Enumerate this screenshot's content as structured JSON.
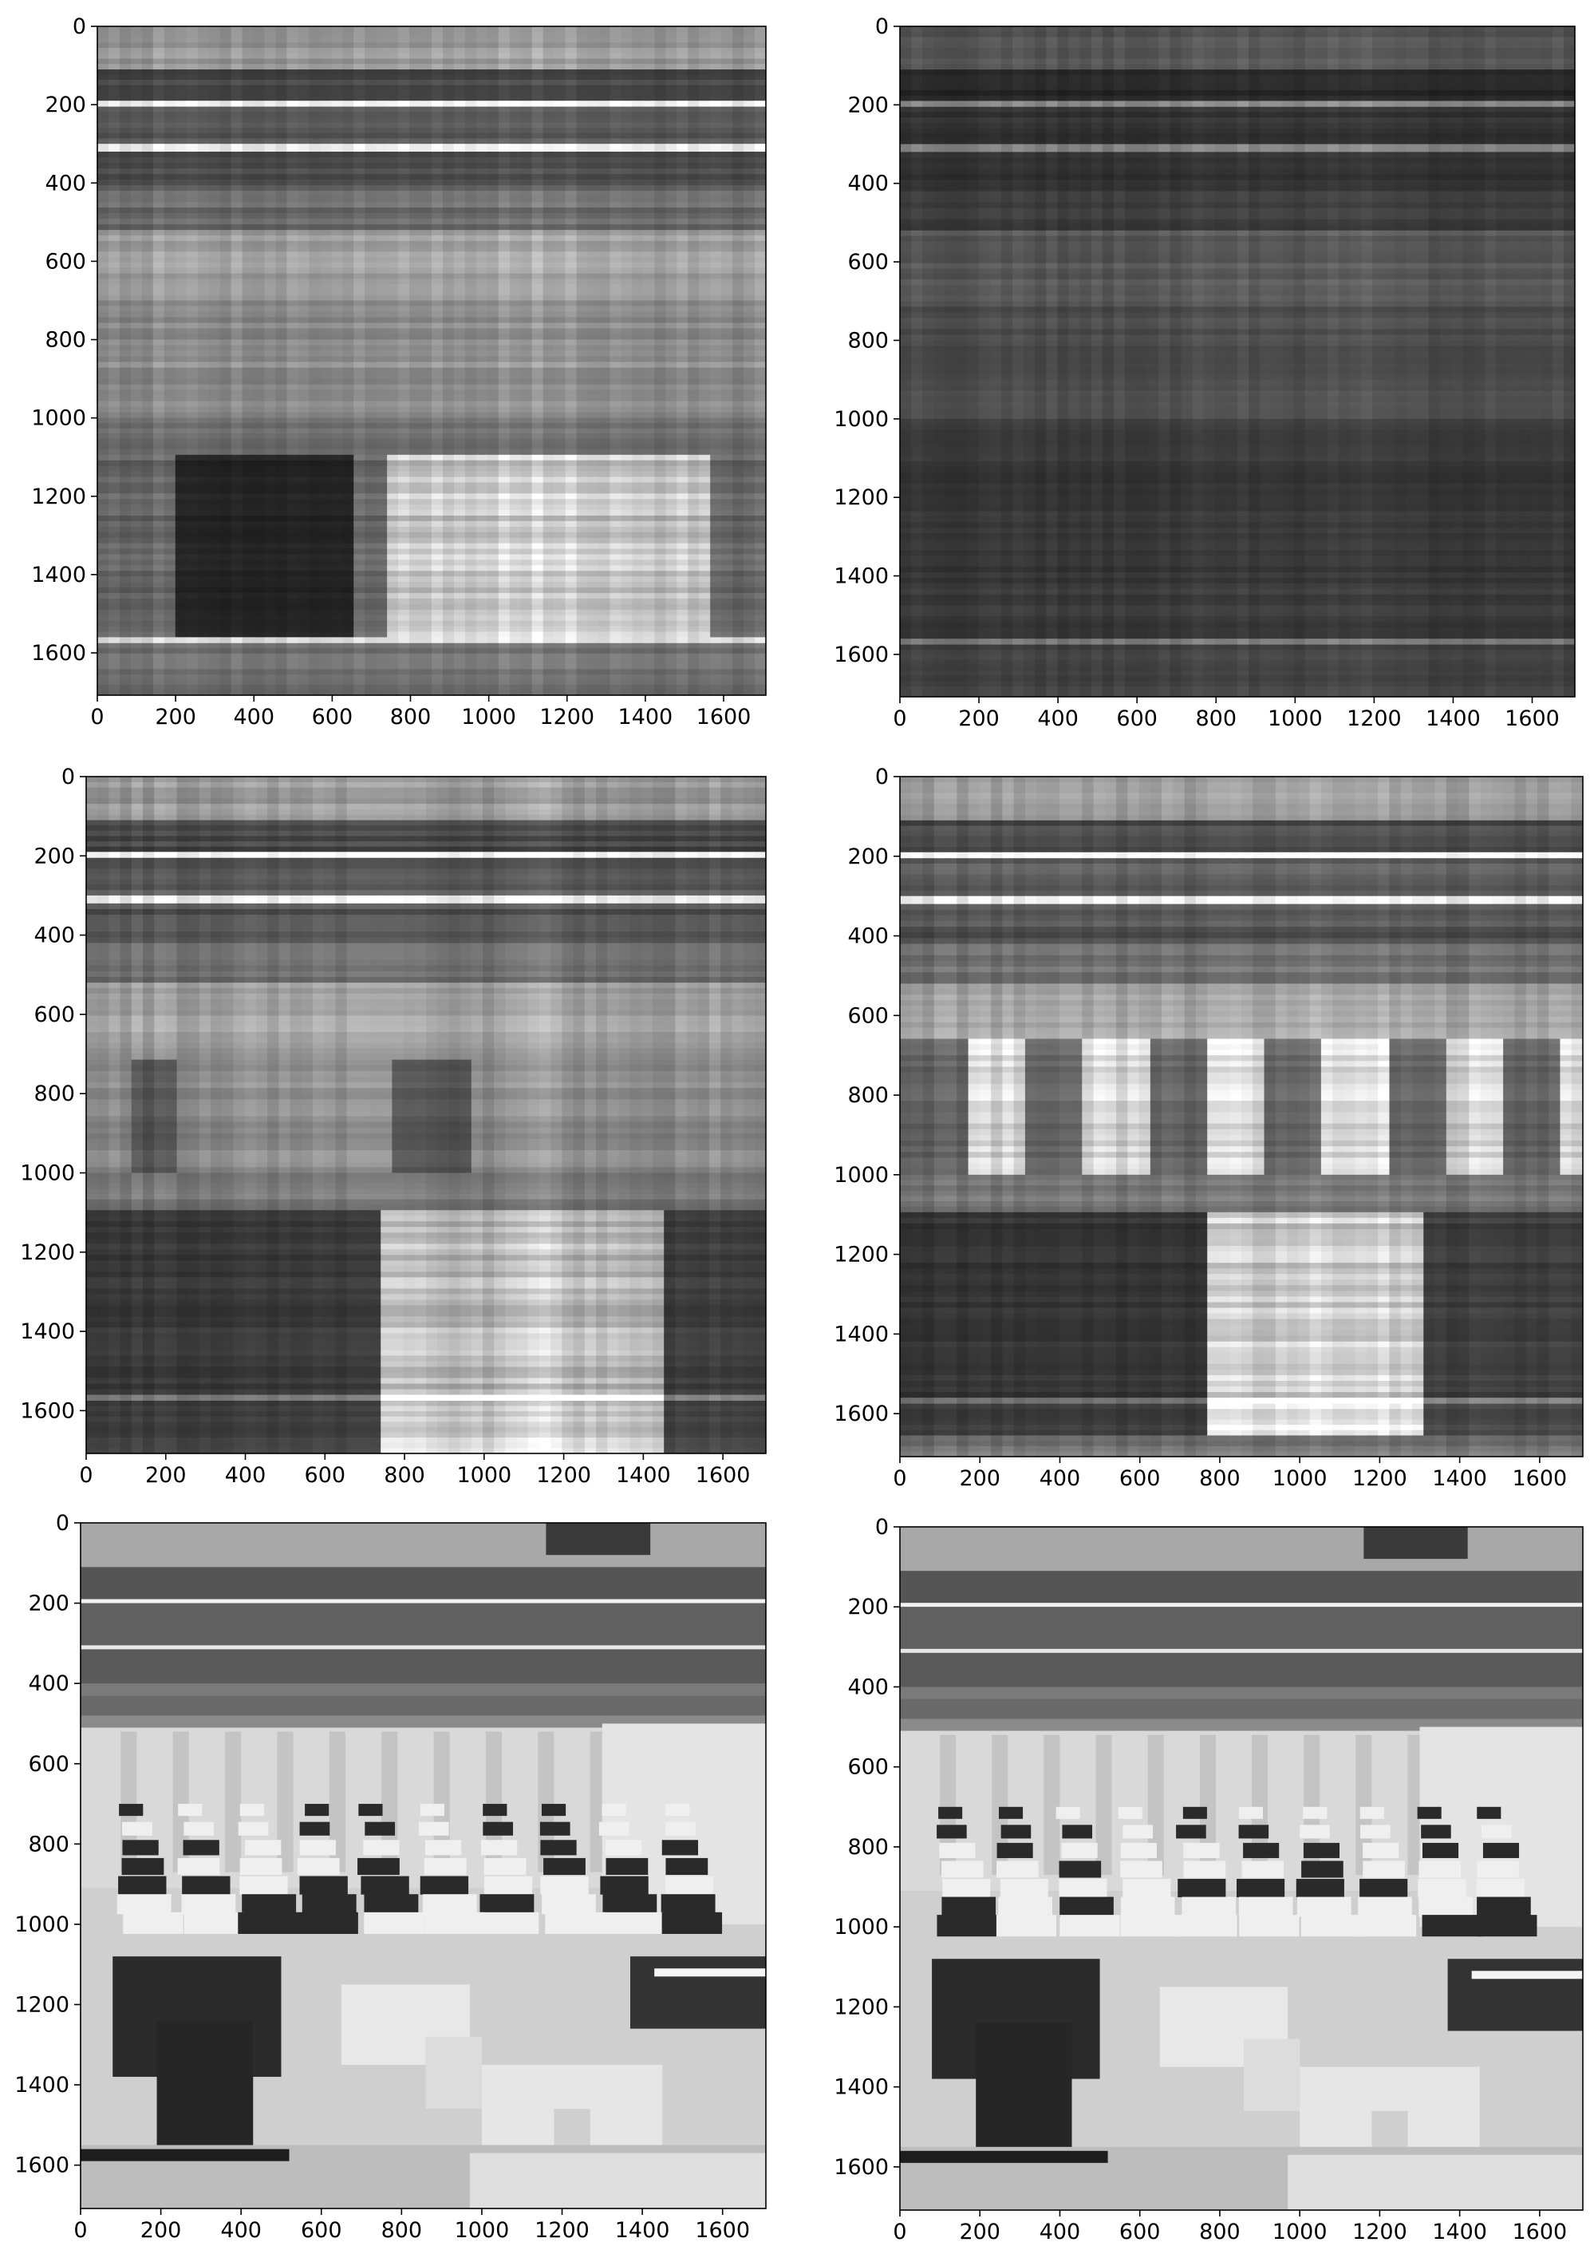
{
  "chart_data": [
    {
      "type": "heatmap",
      "description_key": "image-panel-1",
      "content": "rank-1 SVD reconstruction style grayscale image",
      "x_ticks": [
        0,
        200,
        400,
        600,
        800,
        1000,
        1200,
        1400,
        1600
      ],
      "y_ticks": [
        0,
        200,
        400,
        600,
        800,
        1000,
        1200,
        1400,
        1600
      ],
      "xlim": [
        0,
        1708
      ],
      "ylim": [
        1708,
        0
      ],
      "colormap": "gray"
    },
    {
      "type": "heatmap",
      "content": "low-rank reconstruction, mostly dark horizontal banding",
      "x_ticks": [
        0,
        200,
        400,
        600,
        800,
        1000,
        1200,
        1400,
        1600
      ],
      "y_ticks": [
        0,
        200,
        400,
        600,
        800,
        1000,
        1200,
        1400,
        1600
      ],
      "xlim": [
        0,
        1708
      ],
      "ylim": [
        1708,
        0
      ],
      "colormap": "gray"
    },
    {
      "type": "heatmap",
      "content": "low-rank reconstruction with emerging blocks",
      "x_ticks": [
        0,
        200,
        400,
        600,
        800,
        1000,
        1200,
        1400,
        1600
      ],
      "y_ticks": [
        0,
        200,
        400,
        600,
        800,
        1000,
        1200,
        1400,
        1600
      ],
      "xlim": [
        0,
        1708
      ],
      "ylim": [
        1708,
        0
      ],
      "colormap": "gray"
    },
    {
      "type": "heatmap",
      "content": "medium-rank reconstruction",
      "x_ticks": [
        0,
        200,
        400,
        600,
        800,
        1000,
        1200,
        1400,
        1600
      ],
      "y_ticks": [
        0,
        200,
        400,
        600,
        800,
        1000,
        1200,
        1400,
        1600
      ],
      "xlim": [
        0,
        1708
      ],
      "ylim": [
        1708,
        0
      ],
      "colormap": "gray"
    },
    {
      "type": "heatmap",
      "content": "high-rank reconstruction of office photo",
      "x_ticks": [
        0,
        200,
        400,
        600,
        800,
        1000,
        1200,
        1400,
        1600
      ],
      "y_ticks": [
        0,
        200,
        400,
        600,
        800,
        1000,
        1200,
        1400,
        1600
      ],
      "xlim": [
        0,
        1708
      ],
      "ylim": [
        1708,
        0
      ],
      "colormap": "gray"
    },
    {
      "type": "heatmap",
      "content": "original office photo",
      "x_ticks": [
        0,
        200,
        400,
        600,
        800,
        1000,
        1200,
        1400,
        1600
      ],
      "y_ticks": [
        0,
        200,
        400,
        600,
        800,
        1000,
        1200,
        1400,
        1600
      ],
      "xlim": [
        0,
        1708
      ],
      "ylim": [
        1708,
        0
      ],
      "colormap": "gray"
    }
  ]
}
